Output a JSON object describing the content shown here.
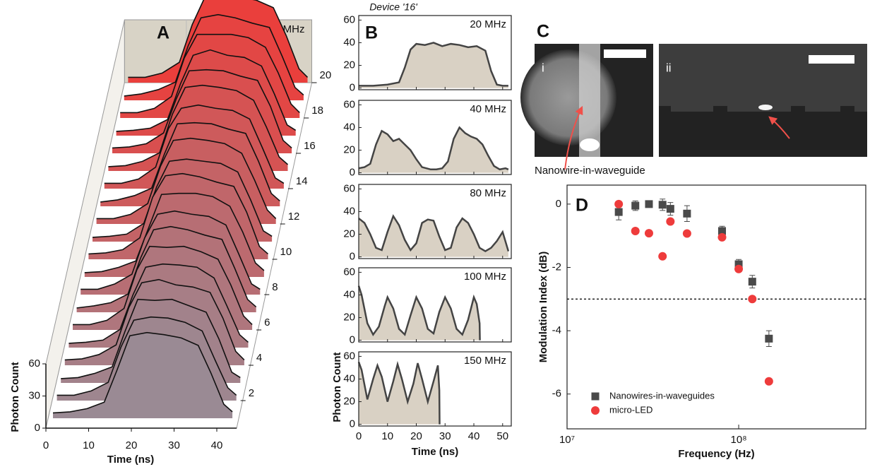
{
  "chart_data": [
    {
      "type": "waterfall",
      "label": "A",
      "title": "25 MHz",
      "xlabel": "Time (ns)",
      "ylabel": "Photon Count",
      "xlim": [
        0,
        40
      ],
      "ylim": [
        0,
        60
      ],
      "xticks": [
        0,
        10,
        20,
        30,
        40
      ],
      "yticks": [
        0,
        30,
        60
      ],
      "zticks": [
        2,
        4,
        6,
        8,
        10,
        12,
        14,
        16,
        18,
        20
      ],
      "color_front": "#9a8a94",
      "color_back": "#ea3f3c",
      "x": [
        0,
        4,
        8,
        12,
        15,
        18,
        22,
        26,
        30,
        34,
        37,
        40,
        42
      ],
      "series": [
        {
          "z": 1,
          "values": [
            5,
            6,
            9,
            15,
            45,
            77,
            80,
            78,
            75,
            68,
            42,
            13,
            6
          ]
        },
        {
          "z": 2,
          "values": [
            5,
            5,
            9,
            17,
            50,
            75,
            78,
            77,
            73,
            65,
            38,
            12,
            5
          ]
        },
        {
          "z": 3,
          "values": [
            4,
            5,
            9,
            15,
            48,
            78,
            77,
            78,
            72,
            66,
            41,
            10,
            5
          ]
        },
        {
          "z": 4,
          "values": [
            5,
            6,
            10,
            19,
            54,
            77,
            80,
            75,
            73,
            68,
            44,
            13,
            5
          ]
        },
        {
          "z": 5,
          "values": [
            4,
            5,
            7,
            17,
            49,
            75,
            78,
            77,
            75,
            65,
            39,
            12,
            5
          ]
        },
        {
          "z": 6,
          "values": [
            5,
            5,
            9,
            20,
            56,
            78,
            77,
            78,
            73,
            66,
            42,
            13,
            5
          ]
        },
        {
          "z": 7,
          "values": [
            4,
            6,
            9,
            17,
            51,
            77,
            80,
            77,
            72,
            68,
            41,
            12,
            5
          ]
        },
        {
          "z": 8,
          "values": [
            5,
            5,
            10,
            19,
            53,
            75,
            78,
            75,
            73,
            65,
            38,
            10,
            5
          ]
        },
        {
          "z": 9,
          "values": [
            4,
            5,
            9,
            15,
            46,
            77,
            78,
            78,
            75,
            66,
            42,
            13,
            6
          ]
        },
        {
          "z": 10,
          "values": [
            5,
            6,
            9,
            20,
            58,
            78,
            80,
            77,
            72,
            68,
            44,
            12,
            5
          ]
        },
        {
          "z": 11,
          "values": [
            4,
            5,
            7,
            17,
            51,
            75,
            77,
            75,
            73,
            65,
            39,
            10,
            5
          ]
        },
        {
          "z": 12,
          "values": [
            5,
            5,
            9,
            19,
            54,
            78,
            80,
            78,
            75,
            66,
            41,
            13,
            5
          ]
        },
        {
          "z": 13,
          "values": [
            4,
            6,
            10,
            17,
            49,
            77,
            78,
            77,
            72,
            68,
            42,
            12,
            5
          ]
        },
        {
          "z": 14,
          "values": [
            5,
            5,
            9,
            20,
            56,
            75,
            78,
            75,
            73,
            65,
            38,
            10,
            5
          ]
        },
        {
          "z": 15,
          "values": [
            4,
            5,
            9,
            17,
            53,
            78,
            80,
            78,
            75,
            66,
            41,
            13,
            6
          ]
        },
        {
          "z": 16,
          "values": [
            5,
            6,
            9,
            19,
            51,
            77,
            78,
            77,
            72,
            68,
            44,
            12,
            5
          ]
        },
        {
          "z": 17,
          "values": [
            4,
            5,
            7,
            15,
            48,
            75,
            80,
            75,
            73,
            65,
            39,
            10,
            5
          ]
        },
        {
          "z": 18,
          "values": [
            5,
            5,
            9,
            20,
            56,
            78,
            78,
            78,
            75,
            66,
            42,
            13,
            5
          ]
        },
        {
          "z": 19,
          "values": [
            4,
            6,
            10,
            17,
            51,
            77,
            80,
            77,
            72,
            68,
            41,
            12,
            5
          ]
        },
        {
          "z": 20,
          "values": [
            5,
            5,
            9,
            19,
            54,
            80,
            82,
            80,
            77,
            70,
            44,
            13,
            5
          ]
        }
      ]
    },
    {
      "type": "area",
      "label": "B",
      "title": "Device '16'",
      "annotation": "20 MHz",
      "xlim": [
        0,
        53
      ],
      "ylim": [
        -1.5,
        64
      ],
      "yticks": [
        0,
        20,
        40,
        60
      ],
      "xticks": [
        0,
        10,
        20,
        30,
        40,
        50
      ],
      "xtick_labels": false,
      "fill": "#d9d1c4",
      "color": "#444444",
      "x": [
        0,
        5,
        10,
        14,
        16,
        18,
        20,
        23,
        26,
        29,
        32,
        35,
        38,
        41,
        44,
        46,
        48,
        50,
        52
      ],
      "values": [
        2,
        2,
        3,
        5,
        18,
        34,
        39,
        38,
        40,
        37,
        39,
        38,
        36,
        37,
        33,
        15,
        3,
        2,
        2
      ]
    },
    {
      "type": "area",
      "annotation": "40 MHz",
      "xlim": [
        0,
        53
      ],
      "ylim": [
        -1.5,
        64
      ],
      "yticks": [
        0,
        20,
        40,
        60
      ],
      "xticks": [
        0,
        10,
        20,
        30,
        40,
        50
      ],
      "xtick_labels": false,
      "fill": "#d9d1c4",
      "color": "#444444",
      "x": [
        0,
        2,
        4,
        6,
        8,
        10,
        12,
        14,
        16,
        18,
        20,
        22,
        25,
        27,
        29,
        31,
        33,
        35,
        37,
        39,
        41,
        43,
        45,
        47,
        49,
        51,
        52
      ],
      "values": [
        4,
        5,
        8,
        25,
        37,
        34,
        28,
        30,
        25,
        20,
        12,
        5,
        3,
        3,
        4,
        10,
        30,
        40,
        35,
        32,
        30,
        25,
        15,
        6,
        3,
        4,
        3
      ]
    },
    {
      "type": "area",
      "annotation": "80 MHz",
      "xlim": [
        0,
        53
      ],
      "ylim": [
        -1.5,
        64
      ],
      "yticks": [
        0,
        20,
        40,
        60
      ],
      "xticks": [
        0,
        10,
        20,
        30,
        40,
        50
      ],
      "xtick_labels": false,
      "fill": "#d9d1c4",
      "color": "#444444",
      "x": [
        0,
        2,
        4,
        6,
        8,
        10,
        12,
        14,
        16,
        18,
        20,
        22,
        24,
        26,
        28,
        30,
        32,
        34,
        36,
        38,
        40,
        42,
        44,
        46,
        48,
        50,
        52
      ],
      "values": [
        34,
        30,
        20,
        8,
        6,
        22,
        36,
        28,
        15,
        6,
        12,
        30,
        33,
        32,
        18,
        6,
        8,
        26,
        34,
        30,
        20,
        8,
        5,
        8,
        14,
        22,
        5
      ]
    },
    {
      "type": "area",
      "annotation": "100 MHz",
      "xlim": [
        0,
        53
      ],
      "ylim": [
        -1.5,
        64
      ],
      "yticks": [
        0,
        20,
        40,
        60
      ],
      "xticks": [
        0,
        10,
        20,
        30,
        40,
        50
      ],
      "xtick_labels": false,
      "fill": "#d9d1c4",
      "color": "#444444",
      "x": [
        0,
        1,
        3,
        5,
        7,
        9,
        10,
        12,
        14,
        16,
        18,
        20,
        22,
        24,
        26,
        28,
        30,
        32,
        34,
        36,
        38,
        40,
        41,
        42,
        42.1
      ],
      "values": [
        48,
        40,
        15,
        5,
        12,
        30,
        38,
        28,
        10,
        5,
        22,
        38,
        28,
        10,
        6,
        25,
        38,
        28,
        10,
        5,
        18,
        38,
        32,
        15,
        0
      ]
    },
    {
      "type": "area",
      "annotation": "150 MHz",
      "xlabel": "Time (ns)",
      "ylabel": "Photon Count",
      "xlim": [
        0,
        53
      ],
      "ylim": [
        -1.5,
        64
      ],
      "yticks": [
        0,
        20,
        40,
        60
      ],
      "xticks": [
        0,
        10,
        20,
        30,
        40,
        50
      ],
      "xtick_labels": true,
      "fill": "#d9d1c4",
      "color": "#444444",
      "x": [
        0,
        1,
        3,
        5,
        6.5,
        8,
        10,
        12,
        13.5,
        15,
        17,
        19,
        20.5,
        22,
        24,
        26,
        27.5,
        28,
        28.1
      ],
      "values": [
        55,
        48,
        22,
        40,
        52,
        42,
        20,
        38,
        53,
        40,
        20,
        36,
        54,
        40,
        20,
        38,
        52,
        30,
        0
      ]
    },
    {
      "type": "scatter",
      "label": "D",
      "xlabel": "Frequency (Hz)",
      "ylabel": "Modulation Index (dB)",
      "xscale": "log",
      "xlim": [
        10000000,
        550000000
      ],
      "ylim": [
        -7.1,
        0.6
      ],
      "xticks": [
        {
          "value": 10000000,
          "label": "10⁷"
        },
        {
          "value": 100000000,
          "label": "10⁸"
        }
      ],
      "yticks": [
        0,
        -2,
        -4,
        -6
      ],
      "hline": -3,
      "legend": "lower left",
      "series": [
        {
          "name": "Nanowires-in-waveguides",
          "color": "#4a4a4a",
          "marker": "square",
          "x": [
            20000000,
            25000000,
            30000000,
            36000000,
            40000000,
            50000000,
            80000000,
            100000000,
            120000000,
            150000000
          ],
          "values": [
            -0.25,
            -0.05,
            0,
            -0.02,
            -0.15,
            -0.3,
            -0.85,
            -1.9,
            -2.45,
            -4.25
          ],
          "errors": [
            0.25,
            0.15,
            0.1,
            0.18,
            0.2,
            0.25,
            0.15,
            0.15,
            0.2,
            0.25
          ]
        },
        {
          "name": "micro-LED",
          "color": "#ee3b3b",
          "marker": "circle",
          "x": [
            20000000,
            25000000,
            30000000,
            36000000,
            40000000,
            50000000,
            80000000,
            100000000,
            120000000,
            150000000
          ],
          "values": [
            0,
            -0.85,
            -0.92,
            -1.65,
            -0.55,
            -0.93,
            -1.05,
            -2.05,
            -3.0,
            -5.6
          ]
        }
      ]
    }
  ],
  "panel_c": {
    "label": "C",
    "images": [
      {
        "label": "i"
      },
      {
        "label": "ii"
      }
    ],
    "annotation": "Nanowire-in-waveguide"
  }
}
